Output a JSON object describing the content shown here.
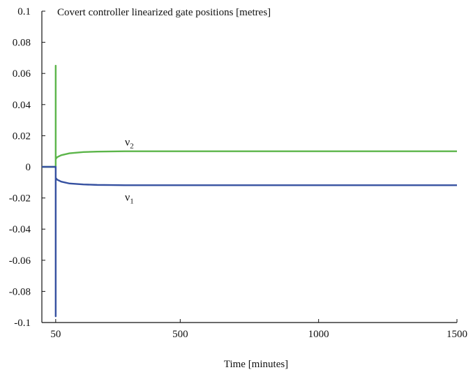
{
  "chart_data": {
    "type": "line",
    "title": "Covert controller linearized gate positions [metres]",
    "xlabel": "Time [minutes]",
    "ylabel": "",
    "xlim": [
      0,
      1500
    ],
    "ylim": [
      -0.1,
      0.1
    ],
    "x_ticks": [
      50,
      500,
      1000,
      1500
    ],
    "x_tick_labels": [
      "50",
      "500",
      "1000",
      "1500"
    ],
    "y_ticks": [
      -0.1,
      -0.08,
      -0.06,
      -0.04,
      -0.02,
      0,
      0.02,
      0.04,
      0.06,
      0.08,
      0.1
    ],
    "y_tick_labels": [
      "-0.1",
      "-0.08",
      "-0.06",
      "-0.04",
      "-0.02",
      "0",
      "0.02",
      "0.04",
      "0.06",
      "0.08",
      "0.1"
    ],
    "grid": false,
    "legend": "none",
    "series": [
      {
        "name": "ν2",
        "label_main": "ν",
        "label_sub": "2",
        "color": "#5cb54a",
        "x": [
          0,
          50,
          50,
          50,
          55,
          70,
          100,
          150,
          200,
          250,
          300,
          400,
          500,
          700,
          1000,
          1250,
          1500
        ],
        "y": [
          0,
          0,
          0.065,
          0.005,
          0.0062,
          0.0075,
          0.0087,
          0.0095,
          0.0098,
          0.0099,
          0.01,
          0.01,
          0.01,
          0.01,
          0.01,
          0.01,
          0.01
        ]
      },
      {
        "name": "ν1",
        "label_main": "ν",
        "label_sub": "1",
        "color": "#3550a0",
        "x": [
          0,
          50,
          50,
          50,
          55,
          70,
          100,
          150,
          200,
          250,
          300,
          400,
          500,
          700,
          1000,
          1250,
          1500
        ],
        "y": [
          0,
          0,
          -0.096,
          -0.007,
          -0.0082,
          -0.0095,
          -0.0107,
          -0.0113,
          -0.0116,
          -0.0117,
          -0.0118,
          -0.0118,
          -0.0118,
          -0.0118,
          -0.0118,
          -0.0118,
          -0.0118
        ]
      }
    ]
  }
}
